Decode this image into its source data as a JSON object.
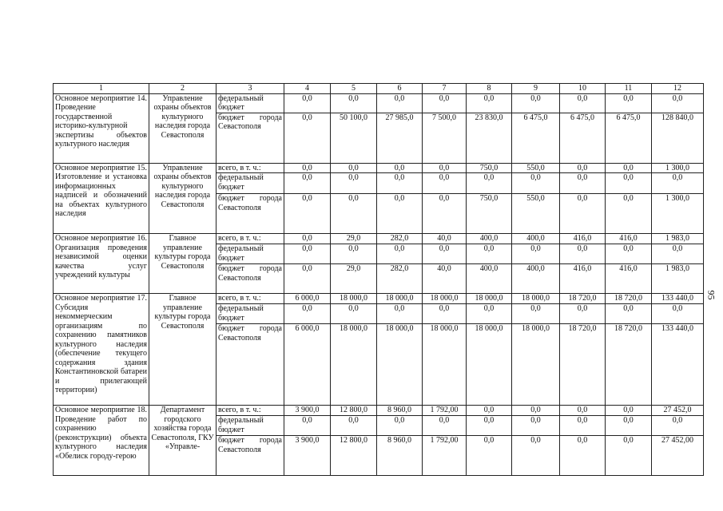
{
  "header": [
    "1",
    "2",
    "3",
    "4",
    "5",
    "6",
    "7",
    "8",
    "9",
    "10",
    "11",
    "12"
  ],
  "page_number": "95",
  "activities": [
    {
      "name": "Основное мероприятие 14. Проведение государственной историко-культурной экспертизы объектов культурного наследия",
      "executor": "Управление охраны объектов культурного наследия города Севастополя",
      "rows": [
        {
          "source": "федеральный бюджет",
          "values": [
            "0,0",
            "0,0",
            "0,0",
            "0,0",
            "0,0",
            "0,0",
            "0,0",
            "0,0",
            "0,0"
          ]
        },
        {
          "source": "бюджет города Севастополя",
          "values": [
            "0,0",
            "50 100,0",
            "27 985,0",
            "7 500,0",
            "23 830,0",
            "6 475,0",
            "6 475,0",
            "6 475,0",
            "128 840,0"
          ]
        }
      ]
    },
    {
      "name": "Основное мероприятие 15. Изготовление и установка информационных надписей и обозначений на объектах культурного наследия",
      "executor": "Управление охраны объектов культурного наследия города Севастополя",
      "rows": [
        {
          "source": "всего, в т. ч.:",
          "values": [
            "0,0",
            "0,0",
            "0,0",
            "0,0",
            "750,0",
            "550,0",
            "0,0",
            "0,0",
            "1 300,0"
          ]
        },
        {
          "source": "федеральный бюджет",
          "values": [
            "0,0",
            "0,0",
            "0,0",
            "0,0",
            "0,0",
            "0,0",
            "0,0",
            "0,0",
            "0,0"
          ]
        },
        {
          "source": "бюджет города Севастополя",
          "values": [
            "0,0",
            "0,0",
            "0,0",
            "0,0",
            "750,0",
            "550,0",
            "0,0",
            "0,0",
            "1 300,0"
          ]
        }
      ]
    },
    {
      "name": "Основное мероприятие 16. Организация проведения независимой оценки качества услуг учреждений культуры",
      "executor": "Главное управление культуры города Севастополя",
      "rows": [
        {
          "source": "всего, в т. ч.:",
          "values": [
            "0,0",
            "29,0",
            "282,0",
            "40,0",
            "400,0",
            "400,0",
            "416,0",
            "416,0",
            "1 983,0"
          ]
        },
        {
          "source": "федеральный бюджет",
          "values": [
            "0,0",
            "0,0",
            "0,0",
            "0,0",
            "0,0",
            "0,0",
            "0,0",
            "0,0",
            "0,0"
          ]
        },
        {
          "source": "бюджет города Севастополя",
          "values": [
            "0,0",
            "29,0",
            "282,0",
            "40,0",
            "400,0",
            "400,0",
            "416,0",
            "416,0",
            "1 983,0"
          ]
        }
      ]
    },
    {
      "name": "Основное мероприятие 17. Субсидия некоммерческим организациям по сохранению памятников культурного наследия (обеспечение текущего содержания здания Константиновской батареи и прилегающей территории)",
      "executor": "Главное управление культуры города Севастополя",
      "rows": [
        {
          "source": "всего, в т. ч.:",
          "values": [
            "6 000,0",
            "18 000,0",
            "18 000,0",
            "18 000,0",
            "18 000,0",
            "18 000,0",
            "18 720,0",
            "18 720,0",
            "133 440,0"
          ]
        },
        {
          "source": "федеральный бюджет",
          "values": [
            "0,0",
            "0,0",
            "0,0",
            "0,0",
            "0,0",
            "0,0",
            "0,0",
            "0,0",
            "0,0"
          ]
        },
        {
          "source": "бюджет города Севастополя",
          "values": [
            "6 000,0",
            "18 000,0",
            "18 000,0",
            "18 000,0",
            "18 000,0",
            "18 000,0",
            "18 720,0",
            "18 720,0",
            "133 440,0"
          ]
        }
      ]
    },
    {
      "name": "Основное мероприятие 18. Проведение работ по сохранению (реконструкции) объекта культурного наследия «Обелиск городу-герою",
      "executor": "Департамент городского хозяйства города Севастополя, ГКУ «Управле-",
      "rows": [
        {
          "source": "всего, в т. ч.:",
          "values": [
            "3 900,0",
            "12 800,0",
            "8 960,0",
            "1 792,00",
            "0,0",
            "0,0",
            "0,0",
            "0,0",
            "27 452,0"
          ]
        },
        {
          "source": "федеральный бюджет",
          "values": [
            "0,0",
            "0,0",
            "0,0",
            "0,0",
            "0,0",
            "0,0",
            "0,0",
            "0,0",
            "0,0"
          ]
        },
        {
          "source": "бюджет города Севастополя",
          "values": [
            "3 900,0",
            "12 800,0",
            "8 960,0",
            "1 792,00",
            "0,0",
            "0,0",
            "0,0",
            "0,0",
            "27 452,00"
          ]
        }
      ]
    }
  ]
}
